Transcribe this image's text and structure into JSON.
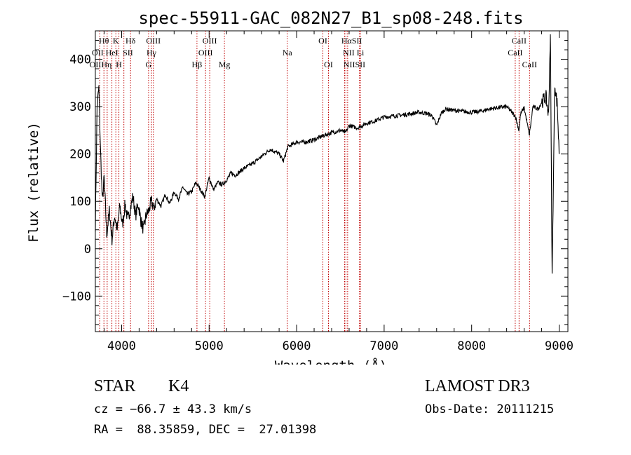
{
  "chart_data": {
    "type": "line",
    "title": "spec-55911-GAC_082N27_B1_sp08-248.fits",
    "xlabel": "Wavelength (Å)",
    "ylabel": "Flux (relative)",
    "xlim": [
      3700,
      9100
    ],
    "ylim": [
      -175,
      460
    ],
    "x_ticks": [
      4000,
      5000,
      6000,
      7000,
      8000,
      9000
    ],
    "y_ticks": [
      -100,
      0,
      100,
      200,
      300,
      400
    ],
    "series": [
      {
        "name": "flux",
        "x": [
          3700,
          3720,
          3740,
          3760,
          3780,
          3800,
          3830,
          3860,
          3890,
          3920,
          3950,
          3980,
          4010,
          4040,
          4070,
          4100,
          4130,
          4160,
          4190,
          4220,
          4250,
          4280,
          4310,
          4340,
          4370,
          4400,
          4450,
          4500,
          4550,
          4600,
          4650,
          4700,
          4750,
          4800,
          4850,
          4900,
          4950,
          5000,
          5050,
          5100,
          5150,
          5200,
          5250,
          5300,
          5400,
          5500,
          5600,
          5700,
          5800,
          5850,
          5900,
          6000,
          6100,
          6200,
          6300,
          6400,
          6500,
          6560,
          6600,
          6700,
          6800,
          6900,
          7000,
          7100,
          7200,
          7300,
          7400,
          7500,
          7550,
          7600,
          7650,
          7700,
          7800,
          7900,
          8000,
          8100,
          8200,
          8300,
          8400,
          8500,
          8540,
          8560,
          8600,
          8660,
          8700,
          8760,
          8800,
          8850,
          8880,
          8900,
          8920,
          8950,
          8980,
          9000
        ],
        "values": [
          50,
          300,
          340,
          200,
          100,
          150,
          30,
          80,
          20,
          70,
          40,
          90,
          50,
          95,
          60,
          85,
          110,
          70,
          95,
          60,
          40,
          70,
          80,
          100,
          85,
          105,
          90,
          115,
          95,
          120,
          105,
          130,
          115,
          120,
          140,
          125,
          110,
          150,
          125,
          140,
          135,
          145,
          160,
          155,
          170,
          180,
          195,
          210,
          200,
          185,
          215,
          225,
          225,
          230,
          238,
          245,
          250,
          245,
          260,
          255,
          265,
          270,
          278,
          280,
          282,
          285,
          288,
          285,
          280,
          260,
          285,
          295,
          292,
          290,
          288,
          290,
          295,
          298,
          300,
          280,
          250,
          285,
          298,
          240,
          300,
          295,
          310,
          320,
          280,
          460,
          -60,
          350,
          300,
          200
        ]
      }
    ],
    "lines": {
      "red_vlines": [
        3750,
        3798,
        3835,
        3889,
        3934,
        3969,
        4026,
        4102,
        4308,
        4341,
        4363,
        4861,
        4959,
        5007,
        5175,
        5893,
        6300,
        6364,
        6548,
        6563,
        6583,
        6716,
        6731,
        8498,
        8542,
        8662
      ]
    },
    "annotations": [
      {
        "text": "Hθ",
        "x": 3798,
        "row": 1
      },
      {
        "text": "K",
        "x": 3934,
        "row": 1
      },
      {
        "text": "Hδ",
        "x": 4102,
        "row": 1
      },
      {
        "text": "OIII",
        "x": 4363,
        "row": 1
      },
      {
        "text": "OIII",
        "x": 5007,
        "row": 1
      },
      {
        "text": "OI",
        "x": 6300,
        "row": 1
      },
      {
        "text": "HαSII",
        "x": 6630,
        "row": 1
      },
      {
        "text": "CaII",
        "x": 8542,
        "row": 1
      },
      {
        "text": "OII",
        "x": 3727,
        "row": 2
      },
      {
        "text": "HeI",
        "x": 3889,
        "row": 2
      },
      {
        "text": "SII",
        "x": 4072,
        "row": 2
      },
      {
        "text": "Hγ",
        "x": 4341,
        "row": 2
      },
      {
        "text": "OIII",
        "x": 4959,
        "row": 2
      },
      {
        "text": "Na",
        "x": 5893,
        "row": 2
      },
      {
        "text": "NII Li",
        "x": 6650,
        "row": 2
      },
      {
        "text": "CaII",
        "x": 8498,
        "row": 2
      },
      {
        "text": "OIIHη",
        "x": 3760,
        "row": 3
      },
      {
        "text": "H",
        "x": 3969,
        "row": 3
      },
      {
        "text": "G",
        "x": 4308,
        "row": 3
      },
      {
        "text": "Hβ",
        "x": 4861,
        "row": 3
      },
      {
        "text": "Mg",
        "x": 5175,
        "row": 3
      },
      {
        "text": "OI",
        "x": 6364,
        "row": 3
      },
      {
        "text": "NIISII",
        "x": 6660,
        "row": 3
      },
      {
        "text": "CaII",
        "x": 8662,
        "row": 3
      }
    ]
  },
  "info": {
    "class_label": "STAR",
    "subclass": "K4",
    "cz": "cz = −66.7 ± 43.3 km/s",
    "coords": "RA =  88.35859, DEC =  27.01398",
    "survey": "LAMOST DR3",
    "obs_date": "Obs-Date: 20111215"
  }
}
